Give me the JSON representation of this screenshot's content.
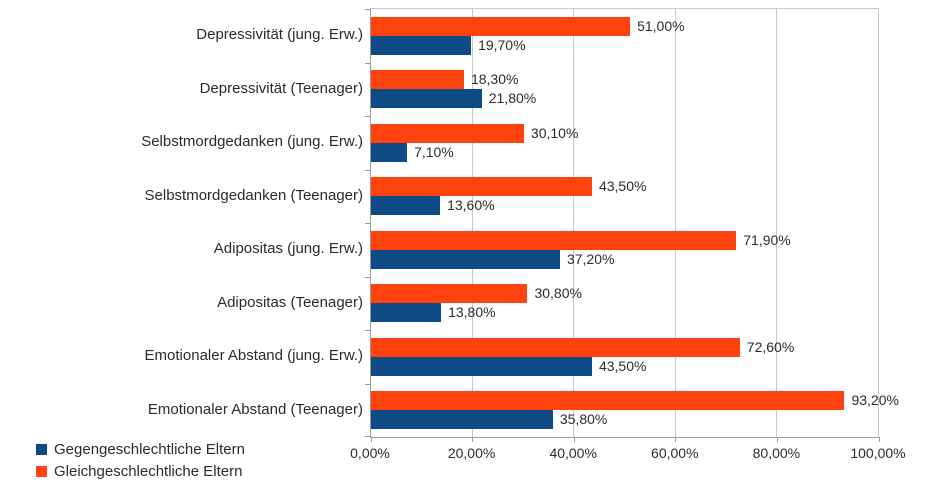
{
  "chart_data": {
    "type": "bar",
    "orientation": "horizontal",
    "title": "",
    "categories": [
      "Depressivität (jung. Erw.)",
      "Depressivität (Teenager)",
      "Selbstmordgedanken (jung. Erw.)",
      "Selbstmordgedanken (Teenager)",
      "Adipositas (jung. Erw.)",
      "Adipositas (Teenager)",
      "Emotionaler Abstand (jung. Erw.)",
      "Emotionaler Abstand (Teenager)"
    ],
    "series": [
      {
        "name": "Gegengeschlechtliche Eltern",
        "color": "#0e4a85",
        "values": [
          19.7,
          21.8,
          7.1,
          13.6,
          37.2,
          13.8,
          43.5,
          35.8
        ],
        "labels": [
          "19,70%",
          "21,80%",
          "7,10%",
          "13,60%",
          "37,20%",
          "13,80%",
          "43,50%",
          "35,80%"
        ]
      },
      {
        "name": "Gleichgeschlechtliche Eltern",
        "color": "#ff420e",
        "values": [
          51.0,
          18.3,
          30.1,
          43.5,
          71.9,
          30.8,
          72.6,
          93.2
        ],
        "labels": [
          "51,00%",
          "18,30%",
          "30,10%",
          "43,50%",
          "71,90%",
          "30,80%",
          "72,60%",
          "93,20%"
        ]
      }
    ],
    "x_axis": {
      "ticks": [
        "0,00%",
        "20,00%",
        "40,00%",
        "60,00%",
        "80,00%",
        "100,00%"
      ],
      "values": [
        0,
        20,
        40,
        60,
        80,
        100
      ],
      "min": 0,
      "max": 100
    },
    "grid": true,
    "legend_position": "bottom-left",
    "colors": {
      "grid": "#c9c9c9",
      "axis": "#9a9a9a",
      "text": "#2b2b2b",
      "background": "#ffffff"
    }
  }
}
